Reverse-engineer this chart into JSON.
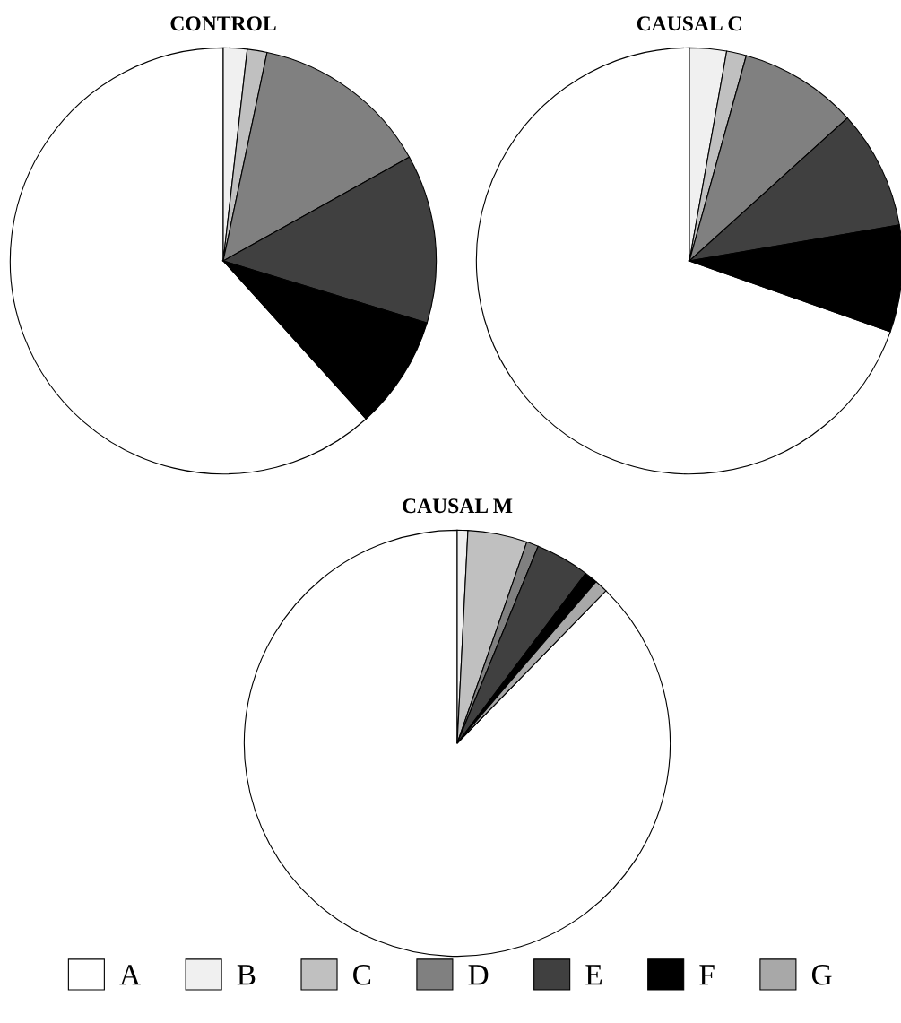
{
  "chart_data": [
    {
      "type": "pie",
      "title": "CONTROL",
      "categories": [
        "A",
        "B",
        "C",
        "D",
        "E",
        "F",
        "G"
      ],
      "values": [
        61.7,
        1.8,
        1.5,
        13.6,
        12.8,
        8.6,
        0
      ],
      "colors": [
        "#ffffff",
        "#f0f0f0",
        "#c0c0c0",
        "#808080",
        "#404040",
        "#000000",
        "#a8a8a8"
      ],
      "legend": "bottom"
    },
    {
      "type": "pie",
      "title": "CAUSAL C",
      "categories": [
        null,
        null,
        null,
        null,
        null,
        null,
        null
      ],
      "values": [
        69.6,
        2.8,
        1.5,
        9.0,
        9.0,
        8.1,
        0
      ],
      "colors": [
        "#ffffff",
        "#f0f0f0",
        "#c0c0c0",
        "#808080",
        "#404040",
        "#000000",
        "#a8a8a8"
      ]
    },
    {
      "type": "pie",
      "title": "CAUSAL M",
      "categories": [
        null,
        null,
        null,
        null,
        null,
        null,
        null
      ],
      "values": [
        87.7,
        0.8,
        4.5,
        0.9,
        4.1,
        1.0,
        1.0
      ],
      "colors": [
        "#ffffff",
        "#f0f0f0",
        "#c0c0c0",
        "#808080",
        "#404040",
        "#000000",
        "#a8a8a8"
      ]
    }
  ]
}
